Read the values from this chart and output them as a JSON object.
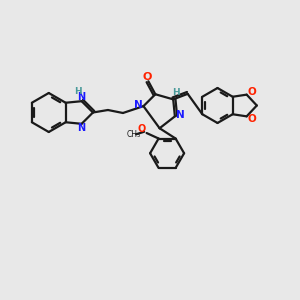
{
  "bg_color": "#e8e8e8",
  "bond_color": "#1a1a1a",
  "N_color": "#1a1aff",
  "O_color": "#ff2200",
  "H_color": "#4a9a9a",
  "figsize": [
    3.0,
    3.0
  ],
  "dpi": 100,
  "xlim": [
    0,
    12
  ],
  "ylim": [
    0,
    12
  ]
}
